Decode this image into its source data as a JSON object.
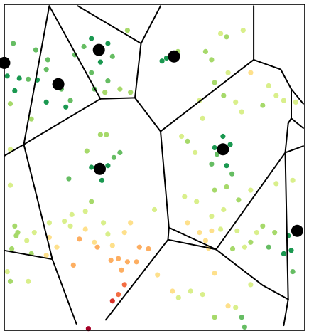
{
  "diagram": {
    "type": "voronoi-tessellation-with-scatter",
    "domain": {
      "x": [
        0,
        1
      ],
      "y": [
        0,
        1
      ]
    },
    "colors": {
      "seed": "#000000",
      "edge": "#000000",
      "background": "#ffffff",
      "scale": [
        "#1a9850",
        "#66bd63",
        "#a6d96a",
        "#d9ef8b",
        "#fee08b",
        "#fdae61",
        "#f46d43",
        "#d73027",
        "#a50026"
      ]
    },
    "seeds": [
      [
        0.0,
        0.82
      ],
      [
        0.18,
        0.755
      ],
      [
        0.315,
        0.86
      ],
      [
        0.565,
        0.84
      ],
      [
        0.318,
        0.495
      ],
      [
        0.728,
        0.555
      ],
      [
        0.975,
        0.305
      ]
    ],
    "cells": [
      [
        [
          0.0,
          0.995
        ],
        [
          0.15,
          0.995
        ],
        [
          0.065,
          0.57
        ],
        [
          0.0,
          0.535
        ]
      ],
      [
        [
          0.15,
          0.995
        ],
        [
          0.32,
          0.71
        ],
        [
          0.065,
          0.57
        ]
      ],
      [
        [
          0.15,
          0.995
        ],
        [
          0.245,
          0.995
        ],
        [
          0.455,
          0.88
        ],
        [
          0.435,
          0.713
        ],
        [
          0.32,
          0.71
        ]
      ],
      [
        [
          0.245,
          0.995
        ],
        [
          0.52,
          0.995
        ],
        [
          0.455,
          0.88
        ]
      ],
      [
        [
          0.52,
          0.995
        ],
        [
          0.83,
          0.995
        ],
        [
          0.83,
          0.83
        ],
        [
          0.52,
          0.61
        ],
        [
          0.435,
          0.713
        ],
        [
          0.455,
          0.88
        ]
      ],
      [
        [
          0.83,
          0.995
        ],
        [
          0.995,
          0.995
        ],
        [
          0.995,
          0.695
        ],
        [
          0.955,
          0.74
        ],
        [
          0.92,
          0.8
        ],
        [
          0.83,
          0.83
        ]
      ],
      [
        [
          0.995,
          0.695
        ],
        [
          0.995,
          0.62
        ],
        [
          0.955,
          0.65
        ],
        [
          0.955,
          0.74
        ]
      ],
      [
        [
          0.995,
          0.62
        ],
        [
          0.995,
          0.565
        ],
        [
          0.935,
          0.545
        ],
        [
          0.945,
          0.635
        ],
        [
          0.955,
          0.65
        ]
      ],
      [
        [
          0.995,
          0.565
        ],
        [
          0.995,
          0.015
        ],
        [
          0.93,
          0.015
        ],
        [
          0.945,
          0.095
        ],
        [
          0.935,
          0.545
        ]
      ],
      [
        [
          0.32,
          0.71
        ],
        [
          0.435,
          0.713
        ],
        [
          0.52,
          0.61
        ],
        [
          0.548,
          0.315
        ],
        [
          0.545,
          0.278
        ],
        [
          0.338,
          0.032
        ],
        [
          0.24,
          0.02
        ],
        [
          0.065,
          0.57
        ]
      ],
      [
        [
          0.52,
          0.61
        ],
        [
          0.83,
          0.83
        ],
        [
          0.92,
          0.8
        ],
        [
          0.955,
          0.74
        ],
        [
          0.945,
          0.635
        ],
        [
          0.935,
          0.545
        ],
        [
          0.705,
          0.248
        ],
        [
          0.548,
          0.315
        ]
      ],
      [
        [
          0.935,
          0.545
        ],
        [
          0.945,
          0.095
        ],
        [
          0.86,
          0.138
        ],
        [
          0.705,
          0.248
        ]
      ],
      [
        [
          0.545,
          0.278
        ],
        [
          0.705,
          0.248
        ],
        [
          0.86,
          0.138
        ],
        [
          0.945,
          0.095
        ],
        [
          0.93,
          0.015
        ],
        [
          0.338,
          0.032
        ]
      ],
      [
        [
          0.0,
          0.535
        ],
        [
          0.065,
          0.57
        ],
        [
          0.16,
          0.218
        ],
        [
          0.0,
          0.245
        ]
      ],
      [
        [
          0.065,
          0.57
        ],
        [
          0.24,
          0.02
        ],
        [
          0.16,
          0.218
        ]
      ],
      [
        [
          0.0,
          0.245
        ],
        [
          0.16,
          0.218
        ],
        [
          0.24,
          0.02
        ],
        [
          0.0,
          0.02
        ]
      ]
    ],
    "edges": [
      [
        [
          0.15,
          0.995
        ],
        [
          0.32,
          0.71
        ]
      ],
      [
        [
          0.15,
          0.995
        ],
        [
          0.065,
          0.57
        ]
      ],
      [
        [
          0.065,
          0.57
        ],
        [
          0.32,
          0.71
        ]
      ],
      [
        [
          0.245,
          0.995
        ],
        [
          0.455,
          0.88
        ]
      ],
      [
        [
          0.52,
          0.995
        ],
        [
          0.455,
          0.88
        ]
      ],
      [
        [
          0.455,
          0.88
        ],
        [
          0.435,
          0.713
        ]
      ],
      [
        [
          0.32,
          0.71
        ],
        [
          0.435,
          0.713
        ]
      ],
      [
        [
          0.435,
          0.713
        ],
        [
          0.52,
          0.61
        ]
      ],
      [
        [
          0.52,
          0.61
        ],
        [
          0.83,
          0.83
        ]
      ],
      [
        [
          0.83,
          0.83
        ],
        [
          0.83,
          0.995
        ]
      ],
      [
        [
          0.83,
          0.83
        ],
        [
          0.92,
          0.8
        ]
      ],
      [
        [
          0.92,
          0.8
        ],
        [
          0.955,
          0.74
        ]
      ],
      [
        [
          0.955,
          0.74
        ],
        [
          0.995,
          0.695
        ]
      ],
      [
        [
          0.955,
          0.74
        ],
        [
          0.955,
          0.65
        ]
      ],
      [
        [
          0.955,
          0.65
        ],
        [
          0.995,
          0.62
        ]
      ],
      [
        [
          0.955,
          0.65
        ],
        [
          0.945,
          0.635
        ]
      ],
      [
        [
          0.945,
          0.635
        ],
        [
          0.935,
          0.545
        ]
      ],
      [
        [
          0.935,
          0.545
        ],
        [
          0.995,
          0.565
        ]
      ],
      [
        [
          0.935,
          0.545
        ],
        [
          0.945,
          0.095
        ]
      ],
      [
        [
          0.945,
          0.095
        ],
        [
          0.93,
          0.015
        ]
      ],
      [
        [
          0.945,
          0.095
        ],
        [
          0.86,
          0.138
        ]
      ],
      [
        [
          0.86,
          0.138
        ],
        [
          0.705,
          0.248
        ]
      ],
      [
        [
          0.705,
          0.248
        ],
        [
          0.935,
          0.545
        ]
      ],
      [
        [
          0.705,
          0.248
        ],
        [
          0.545,
          0.278
        ]
      ],
      [
        [
          0.545,
          0.278
        ],
        [
          0.548,
          0.315
        ]
      ],
      [
        [
          0.548,
          0.315
        ],
        [
          0.52,
          0.61
        ]
      ],
      [
        [
          0.548,
          0.315
        ],
        [
          0.705,
          0.248
        ]
      ],
      [
        [
          0.545,
          0.278
        ],
        [
          0.338,
          0.032
        ]
      ],
      [
        [
          0.065,
          0.57
        ],
        [
          0.0,
          0.535
        ]
      ],
      [
        [
          0.065,
          0.57
        ],
        [
          0.16,
          0.218
        ]
      ],
      [
        [
          0.16,
          0.218
        ],
        [
          0.0,
          0.245
        ]
      ],
      [
        [
          0.16,
          0.218
        ],
        [
          0.24,
          0.02
        ]
      ]
    ],
    "points": [
      [
        0.01,
        0.78,
        0
      ],
      [
        0.035,
        0.735,
        0
      ],
      [
        0.05,
        0.773,
        0
      ],
      [
        0.03,
        0.88,
        1
      ],
      [
        0.14,
        0.8,
        1
      ],
      [
        0.11,
        0.768,
        0
      ],
      [
        0.14,
        0.7,
        0
      ],
      [
        0.205,
        0.685,
        0
      ],
      [
        0.19,
        0.74,
        1
      ],
      [
        0.22,
        0.705,
        1
      ],
      [
        0.105,
        0.86,
        1
      ],
      [
        0.145,
        0.83,
        1
      ],
      [
        0.08,
        0.77,
        1
      ],
      [
        0.02,
        0.695,
        2
      ],
      [
        0.09,
        0.648,
        2
      ],
      [
        0.02,
        0.555,
        3
      ],
      [
        0.29,
        0.895,
        0
      ],
      [
        0.345,
        0.88,
        0
      ],
      [
        0.36,
        0.84,
        1
      ],
      [
        0.265,
        0.87,
        1
      ],
      [
        0.235,
        0.845,
        1
      ],
      [
        0.32,
        0.823,
        0
      ],
      [
        0.29,
        0.79,
        1
      ],
      [
        0.345,
        0.765,
        1
      ],
      [
        0.385,
        0.74,
        2
      ],
      [
        0.3,
        0.74,
        1
      ],
      [
        0.335,
        0.73,
        2
      ],
      [
        0.41,
        0.92,
        2
      ],
      [
        0.42,
        0.73,
        2
      ],
      [
        0.54,
        0.835,
        0
      ],
      [
        0.525,
        0.826,
        0
      ],
      [
        0.578,
        0.855,
        2
      ],
      [
        0.67,
        0.855,
        2
      ],
      [
        0.69,
        0.83,
        2
      ],
      [
        0.72,
        0.91,
        3
      ],
      [
        0.74,
        0.9,
        2
      ],
      [
        0.795,
        0.92,
        3
      ],
      [
        0.745,
        0.79,
        3
      ],
      [
        0.7,
        0.76,
        2
      ],
      [
        0.65,
        0.705,
        3
      ],
      [
        0.73,
        0.72,
        2
      ],
      [
        0.66,
        0.65,
        3
      ],
      [
        0.82,
        0.79,
        4
      ],
      [
        0.88,
        0.75,
        3
      ],
      [
        0.905,
        0.72,
        3
      ],
      [
        0.86,
        0.69,
        2
      ],
      [
        0.77,
        0.7,
        3
      ],
      [
        0.79,
        0.67,
        3
      ],
      [
        0.93,
        0.705,
        3
      ],
      [
        0.97,
        0.7,
        3
      ],
      [
        0.7,
        0.56,
        0
      ],
      [
        0.728,
        0.595,
        0
      ],
      [
        0.752,
        0.57,
        0
      ],
      [
        0.708,
        0.54,
        1
      ],
      [
        0.69,
        0.51,
        1
      ],
      [
        0.74,
        0.505,
        0
      ],
      [
        0.758,
        0.48,
        1
      ],
      [
        0.61,
        0.58,
        2
      ],
      [
        0.635,
        0.545,
        3
      ],
      [
        0.59,
        0.595,
        3
      ],
      [
        0.7,
        0.43,
        2
      ],
      [
        0.74,
        0.44,
        2
      ],
      [
        0.78,
        0.4,
        2
      ],
      [
        0.73,
        0.37,
        3
      ],
      [
        0.82,
        0.43,
        3
      ],
      [
        0.64,
        0.395,
        3
      ],
      [
        0.69,
        0.35,
        3
      ],
      [
        0.6,
        0.41,
        3
      ],
      [
        0.61,
        0.33,
        4
      ],
      [
        0.65,
        0.3,
        4
      ],
      [
        0.69,
        0.305,
        4
      ],
      [
        0.67,
        0.275,
        4
      ],
      [
        0.68,
        0.252,
        4
      ],
      [
        0.72,
        0.31,
        3
      ],
      [
        0.775,
        0.305,
        3
      ],
      [
        0.8,
        0.255,
        3
      ],
      [
        0.76,
        0.25,
        2
      ],
      [
        0.84,
        0.3,
        3
      ],
      [
        0.82,
        0.27,
        2
      ],
      [
        0.86,
        0.32,
        2
      ],
      [
        0.88,
        0.255,
        1
      ],
      [
        0.9,
        0.3,
        2
      ],
      [
        0.945,
        0.29,
        0
      ],
      [
        0.955,
        0.245,
        0
      ],
      [
        0.93,
        0.235,
        0
      ],
      [
        0.96,
        0.18,
        1
      ],
      [
        0.905,
        0.45,
        3
      ],
      [
        0.96,
        0.46,
        3
      ],
      [
        0.29,
        0.5,
        0
      ],
      [
        0.325,
        0.46,
        0
      ],
      [
        0.345,
        0.505,
        0
      ],
      [
        0.365,
        0.53,
        1
      ],
      [
        0.385,
        0.545,
        1
      ],
      [
        0.275,
        0.55,
        2
      ],
      [
        0.32,
        0.6,
        2
      ],
      [
        0.34,
        0.6,
        2
      ],
      [
        0.215,
        0.465,
        1
      ],
      [
        0.29,
        0.395,
        2
      ],
      [
        0.225,
        0.355,
        3
      ],
      [
        0.27,
        0.365,
        3
      ],
      [
        0.22,
        0.32,
        3
      ],
      [
        0.2,
        0.335,
        3
      ],
      [
        0.33,
        0.33,
        3
      ],
      [
        0.345,
        0.295,
        3
      ],
      [
        0.3,
        0.27,
        4
      ],
      [
        0.36,
        0.26,
        4
      ],
      [
        0.4,
        0.3,
        4
      ],
      [
        0.38,
        0.22,
        5
      ],
      [
        0.41,
        0.21,
        5
      ],
      [
        0.355,
        0.215,
        5
      ],
      [
        0.44,
        0.21,
        5
      ],
      [
        0.48,
        0.25,
        5
      ],
      [
        0.45,
        0.255,
        5
      ],
      [
        0.5,
        0.37,
        3
      ],
      [
        0.42,
        0.33,
        4
      ],
      [
        0.27,
        0.31,
        4
      ],
      [
        0.31,
        0.255,
        5
      ],
      [
        0.39,
        0.185,
        5
      ],
      [
        0.4,
        0.14,
        6
      ],
      [
        0.38,
        0.11,
        6
      ],
      [
        0.36,
        0.09,
        7
      ],
      [
        0.23,
        0.2,
        5
      ],
      [
        0.25,
        0.28,
        5
      ],
      [
        0.175,
        0.255,
        4
      ],
      [
        0.15,
        0.285,
        4
      ],
      [
        0.14,
        0.23,
        4
      ],
      [
        0.15,
        0.33,
        3
      ],
      [
        0.1,
        0.3,
        3
      ],
      [
        0.035,
        0.32,
        2
      ],
      [
        0.04,
        0.29,
        2
      ],
      [
        0.025,
        0.25,
        2
      ],
      [
        0.075,
        0.275,
        3
      ],
      [
        0.09,
        0.235,
        2
      ],
      [
        0.02,
        0.445,
        3
      ],
      [
        0.045,
        0.3,
        2
      ],
      [
        0.01,
        0.18,
        3
      ],
      [
        0.02,
        0.15,
        2
      ],
      [
        0.08,
        0.15,
        3
      ],
      [
        0.28,
        0.005,
        8
      ],
      [
        0.51,
        0.17,
        4
      ],
      [
        0.56,
        0.12,
        4
      ],
      [
        0.62,
        0.12,
        3
      ],
      [
        0.66,
        0.11,
        3
      ],
      [
        0.7,
        0.175,
        4
      ],
      [
        0.58,
        0.1,
        3
      ],
      [
        0.7,
        0.04,
        2
      ],
      [
        0.79,
        0.04,
        1
      ],
      [
        0.8,
        0.01,
        1
      ],
      [
        0.82,
        0.14,
        3
      ],
      [
        0.745,
        0.075,
        4
      ],
      [
        0.77,
        0.07,
        3
      ]
    ]
  }
}
